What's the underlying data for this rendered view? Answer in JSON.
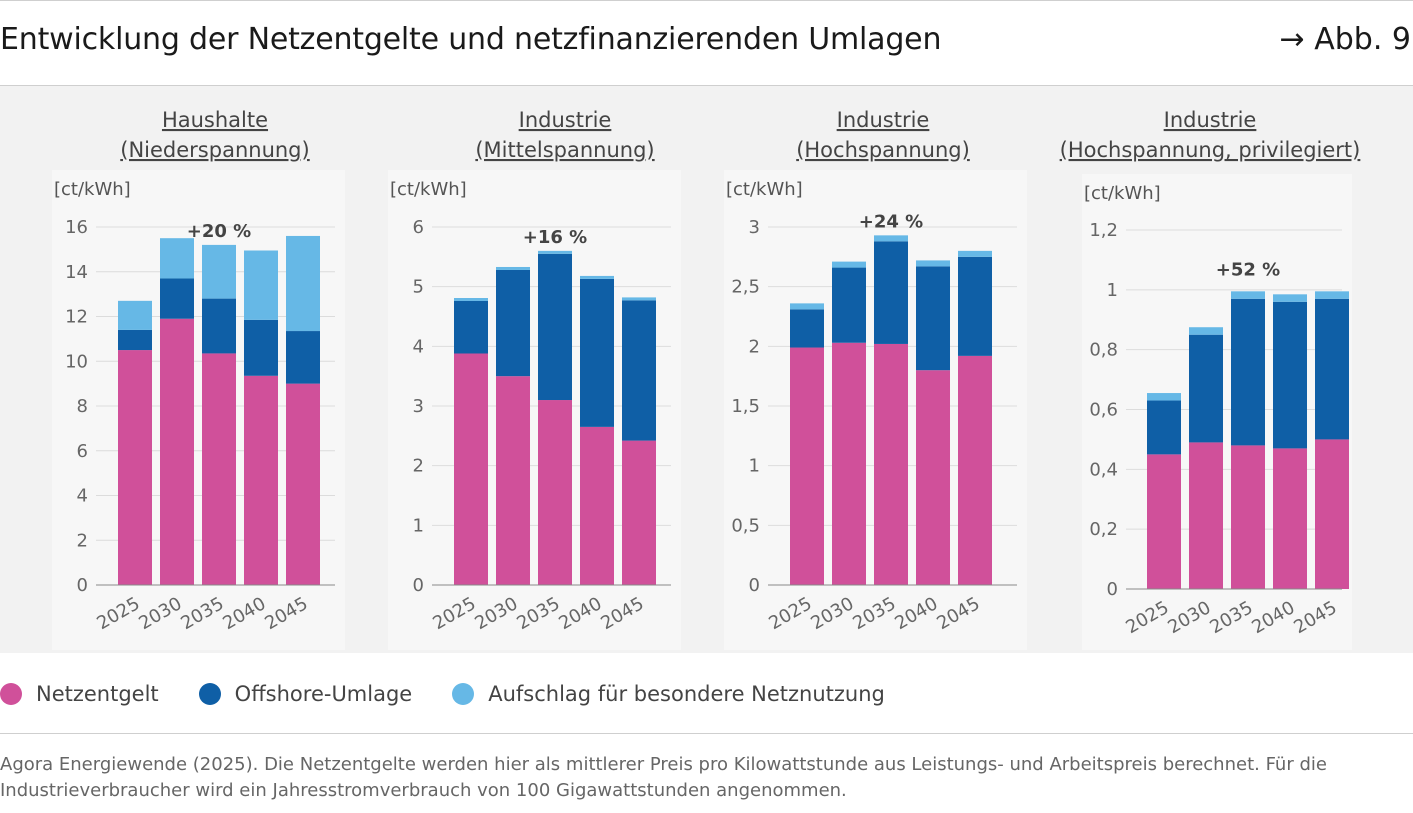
{
  "header": {
    "title": "Entwicklung der Netzentgelte und netzfinanzierenden Umlagen",
    "figure_ref": "→ Abb. 9"
  },
  "colors": {
    "netzentgelt": "#d0509a",
    "offshore": "#0f5fa6",
    "aufschlag": "#66b8e6"
  },
  "legend": [
    {
      "label": "Netzentgelt",
      "color": "#d0509a"
    },
    {
      "label": "Offshore-Umlage",
      "color": "#0f5fa6"
    },
    {
      "label": "Aufschlag für besondere Netznutzung",
      "color": "#66b8e6"
    }
  ],
  "source": "Agora Energiewende (2025). Die Netzentgelte werden hier als mittlerer Preis pro Kilowattstunde aus Leistungs- und Arbeitspreis berechnet. Für die Industrieverbraucher wird ein Jahresstromverbrauch von 100 Gigawattstunden angenommen.",
  "chart_data": [
    {
      "type": "bar",
      "stacked": true,
      "title_lines": [
        "Haushalte",
        "(Niederspannung)"
      ],
      "ylabel": "[ct/kWh]",
      "ylim": [
        0,
        16
      ],
      "yticks": [
        0,
        2,
        4,
        6,
        8,
        10,
        12,
        14,
        16
      ],
      "ytick_labels": [
        "0",
        "2",
        "4",
        "6",
        "8",
        "10",
        "12",
        "14",
        "16"
      ],
      "categories": [
        "2025",
        "2030",
        "2035",
        "2040",
        "2045"
      ],
      "series": [
        {
          "name": "Netzentgelt",
          "values": [
            10.5,
            11.9,
            10.35,
            9.35,
            9.0
          ]
        },
        {
          "name": "Offshore-Umlage",
          "values": [
            0.9,
            1.8,
            2.45,
            2.5,
            2.35
          ]
        },
        {
          "name": "Aufschlag für besondere Netznutzung",
          "values": [
            1.3,
            1.8,
            2.4,
            3.1,
            4.25
          ]
        }
      ],
      "annotation": {
        "text": "+20 %",
        "category": "2035"
      }
    },
    {
      "type": "bar",
      "stacked": true,
      "title_lines": [
        "Industrie",
        "(Mittelspannung)"
      ],
      "ylabel": "[ct/kWh]",
      "ylim": [
        0,
        6
      ],
      "yticks": [
        0,
        1,
        2,
        3,
        4,
        5,
        6
      ],
      "ytick_labels": [
        "0",
        "1",
        "2",
        "3",
        "4",
        "5",
        "6"
      ],
      "categories": [
        "2025",
        "2030",
        "2035",
        "2040",
        "2045"
      ],
      "series": [
        {
          "name": "Netzentgelt",
          "values": [
            3.88,
            3.5,
            3.1,
            2.65,
            2.42
          ]
        },
        {
          "name": "Offshore-Umlage",
          "values": [
            0.88,
            1.78,
            2.45,
            2.48,
            2.35
          ]
        },
        {
          "name": "Aufschlag für besondere Netznutzung",
          "values": [
            0.05,
            0.05,
            0.05,
            0.05,
            0.05
          ]
        }
      ],
      "annotation": {
        "text": "+16 %",
        "category": "2035"
      }
    },
    {
      "type": "bar",
      "stacked": true,
      "title_lines": [
        "Industrie",
        "(Hochspannung)"
      ],
      "ylabel": "[ct/kWh]",
      "ylim": [
        0,
        3
      ],
      "yticks": [
        0,
        0.5,
        1,
        1.5,
        2,
        2.5,
        3
      ],
      "ytick_labels": [
        "0",
        "0,5",
        "1",
        "1,5",
        "2",
        "2,5",
        "3"
      ],
      "categories": [
        "2025",
        "2030",
        "2035",
        "2040",
        "2045"
      ],
      "series": [
        {
          "name": "Netzentgelt",
          "values": [
            1.99,
            2.03,
            2.02,
            1.8,
            1.92
          ]
        },
        {
          "name": "Offshore-Umlage",
          "values": [
            0.32,
            0.63,
            0.86,
            0.87,
            0.83
          ]
        },
        {
          "name": "Aufschlag für besondere Netznutzung",
          "values": [
            0.05,
            0.05,
            0.05,
            0.05,
            0.05
          ]
        }
      ],
      "annotation": {
        "text": "+24 %",
        "category": "2035"
      }
    },
    {
      "type": "bar",
      "stacked": true,
      "title_lines": [
        "Industrie",
        "(Hochspannung, privilegiert)"
      ],
      "ylabel": "[ct/kWh]",
      "ylim": [
        0,
        1.2
      ],
      "yticks": [
        0,
        0.2,
        0.4,
        0.6,
        0.8,
        1,
        1.2
      ],
      "ytick_labels": [
        "0",
        "0,2",
        "0,4",
        "0,6",
        "0,8",
        "1",
        "1,2"
      ],
      "categories": [
        "2025",
        "2030",
        "2035",
        "2040",
        "2045"
      ],
      "series": [
        {
          "name": "Netzentgelt",
          "values": [
            0.45,
            0.49,
            0.48,
            0.47,
            0.5
          ]
        },
        {
          "name": "Offshore-Umlage",
          "values": [
            0.18,
            0.36,
            0.49,
            0.49,
            0.47
          ]
        },
        {
          "name": "Aufschlag für besondere Netznutzung",
          "values": [
            0.025,
            0.025,
            0.025,
            0.025,
            0.025
          ]
        }
      ],
      "annotation": {
        "text": "+52 %",
        "category": "2035"
      }
    }
  ]
}
